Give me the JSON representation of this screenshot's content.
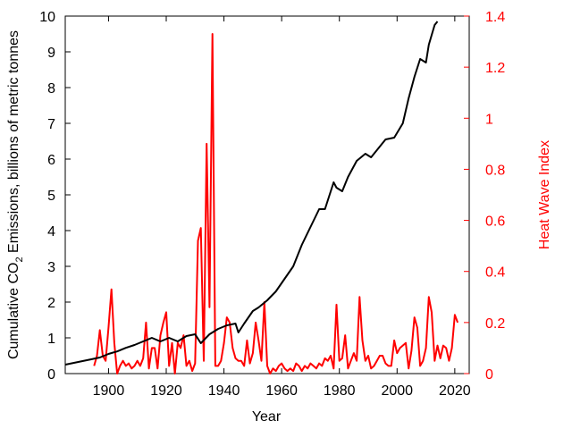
{
  "chart_data": {
    "type": "line",
    "title": "",
    "xlabel": "Year",
    "ylabel_left_main": "Cumulative CO",
    "ylabel_left_sub": "2",
    "ylabel_left_rest": " Emissions, billions of metric tonnes",
    "ylabel_right": "Heat Wave Index",
    "xlim": [
      1885,
      2025
    ],
    "ylim_left": [
      0,
      10
    ],
    "ylim_right": [
      0,
      1.4
    ],
    "x_ticks": [
      1900,
      1920,
      1940,
      1960,
      1980,
      2000,
      2020
    ],
    "y_left_ticks": [
      0,
      1,
      2,
      3,
      4,
      5,
      6,
      7,
      8,
      9,
      10
    ],
    "y_right_ticks": [
      "0",
      "0.2",
      "0.4",
      "0.6",
      "0.8",
      "1",
      "1.2",
      "1.4"
    ],
    "y_right_tick_values": [
      0,
      0.2,
      0.4,
      0.6,
      0.8,
      1.0,
      1.2,
      1.4
    ],
    "grid": false,
    "series": [
      {
        "axis": "left",
        "color": "#000000",
        "x": [
          1885,
          1888,
          1891,
          1894,
          1897,
          1900,
          1903,
          1906,
          1909,
          1912,
          1915,
          1918,
          1921,
          1924,
          1927,
          1930,
          1932,
          1935,
          1938,
          1941,
          1944,
          1945,
          1947,
          1950,
          1952,
          1955,
          1958,
          1961,
          1964,
          1967,
          1970,
          1973,
          1975,
          1978,
          1979,
          1981,
          1983,
          1986,
          1989,
          1991,
          1993,
          1996,
          1999,
          2002,
          2004,
          2006,
          2008,
          2010,
          2011,
          2013,
          2014
        ],
        "y": [
          0.25,
          0.3,
          0.35,
          0.4,
          0.45,
          0.55,
          0.62,
          0.72,
          0.8,
          0.9,
          1.0,
          0.9,
          1.0,
          0.9,
          1.05,
          1.1,
          0.85,
          1.1,
          1.25,
          1.35,
          1.4,
          1.15,
          1.4,
          1.75,
          1.85,
          2.05,
          2.3,
          2.65,
          3.0,
          3.6,
          4.1,
          4.6,
          4.6,
          5.35,
          5.2,
          5.1,
          5.5,
          5.95,
          6.15,
          6.05,
          6.25,
          6.55,
          6.6,
          7.0,
          7.7,
          8.3,
          8.8,
          8.7,
          9.2,
          9.75,
          9.85
        ]
      },
      {
        "axis": "right",
        "color": "#ff0000",
        "x": [
          1895,
          1896,
          1897,
          1898,
          1899,
          1900,
          1901,
          1902,
          1903,
          1904,
          1905,
          1906,
          1907,
          1908,
          1909,
          1910,
          1911,
          1912,
          1913,
          1914,
          1915,
          1916,
          1917,
          1918,
          1919,
          1920,
          1921,
          1922,
          1923,
          1924,
          1925,
          1926,
          1927,
          1928,
          1929,
          1930,
          1931,
          1932,
          1933,
          1934,
          1935,
          1936,
          1937,
          1938,
          1939,
          1940,
          1941,
          1942,
          1943,
          1944,
          1945,
          1946,
          1947,
          1948,
          1949,
          1950,
          1951,
          1952,
          1953,
          1954,
          1955,
          1956,
          1957,
          1958,
          1959,
          1960,
          1961,
          1962,
          1963,
          1964,
          1965,
          1966,
          1967,
          1968,
          1969,
          1970,
          1971,
          1972,
          1973,
          1974,
          1975,
          1976,
          1977,
          1978,
          1979,
          1980,
          1981,
          1982,
          1983,
          1984,
          1985,
          1986,
          1987,
          1988,
          1989,
          1990,
          1991,
          1992,
          1993,
          1994,
          1995,
          1996,
          1997,
          1998,
          1999,
          2000,
          2001,
          2002,
          2003,
          2004,
          2005,
          2006,
          2007,
          2008,
          2009,
          2010,
          2011,
          2012,
          2013,
          2014,
          2015,
          2016,
          2017,
          2018,
          2019,
          2020,
          2021
        ],
        "y": [
          0.03,
          0.07,
          0.17,
          0.07,
          0.05,
          0.18,
          0.33,
          0.12,
          0.0,
          0.03,
          0.05,
          0.03,
          0.04,
          0.02,
          0.03,
          0.05,
          0.03,
          0.06,
          0.2,
          0.02,
          0.1,
          0.1,
          0.02,
          0.15,
          0.2,
          0.24,
          0.03,
          0.12,
          0.0,
          0.12,
          0.1,
          0.15,
          0.03,
          0.05,
          0.01,
          0.04,
          0.52,
          0.57,
          0.05,
          0.9,
          0.26,
          1.33,
          0.03,
          0.03,
          0.05,
          0.12,
          0.22,
          0.2,
          0.1,
          0.06,
          0.05,
          0.05,
          0.03,
          0.13,
          0.04,
          0.08,
          0.2,
          0.13,
          0.05,
          0.28,
          0.03,
          0.0,
          0.02,
          0.01,
          0.03,
          0.04,
          0.02,
          0.01,
          0.02,
          0.01,
          0.04,
          0.03,
          0.01,
          0.03,
          0.02,
          0.04,
          0.03,
          0.02,
          0.04,
          0.03,
          0.06,
          0.05,
          0.07,
          0.02,
          0.27,
          0.05,
          0.06,
          0.15,
          0.02,
          0.05,
          0.08,
          0.05,
          0.3,
          0.13,
          0.05,
          0.07,
          0.02,
          0.03,
          0.05,
          0.07,
          0.07,
          0.04,
          0.03,
          0.03,
          0.13,
          0.08,
          0.1,
          0.11,
          0.12,
          0.02,
          0.09,
          0.22,
          0.18,
          0.03,
          0.05,
          0.1,
          0.3,
          0.24,
          0.05,
          0.11,
          0.06,
          0.11,
          0.1,
          0.05,
          0.1,
          0.23,
          0.2
        ]
      }
    ]
  }
}
